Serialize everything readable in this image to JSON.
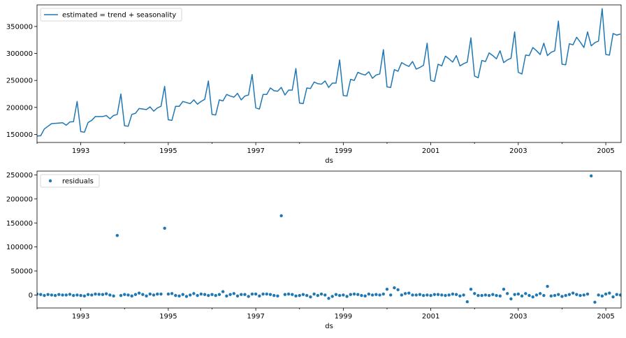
{
  "chart_data": [
    {
      "type": "line",
      "color": "#1f77b4",
      "legend": "estimated = trend + seasonality",
      "legend_position": "top-left",
      "xlabel": "ds",
      "xlim": [
        1992.0,
        2005.35
      ],
      "ylim": [
        135000,
        390000
      ],
      "yticks": [
        150000,
        200000,
        250000,
        300000,
        350000
      ],
      "ytick_labels": [
        "150000",
        "200000",
        "250000",
        "300000",
        "350000"
      ],
      "xticks": [
        1993,
        1995,
        1997,
        1999,
        2001,
        2003,
        2005
      ],
      "xtick_labels": [
        "1993",
        "1995",
        "1997",
        "1999",
        "2001",
        "2003",
        "2005"
      ],
      "grid": false,
      "x": [
        1992.0,
        1992.0833,
        1992.1667,
        1992.25,
        1992.3333,
        1992.4167,
        1992.5,
        1992.5833,
        1992.6667,
        1992.75,
        1992.8333,
        1992.9167,
        1993.0,
        1993.0833,
        1993.1667,
        1993.25,
        1993.3333,
        1993.4167,
        1993.5,
        1993.5833,
        1993.6667,
        1993.75,
        1993.8333,
        1993.9167,
        1994.0,
        1994.0833,
        1994.1667,
        1994.25,
        1994.3333,
        1994.4167,
        1994.5,
        1994.5833,
        1994.6667,
        1994.75,
        1994.8333,
        1994.9167,
        1995.0,
        1995.0833,
        1995.1667,
        1995.25,
        1995.3333,
        1995.4167,
        1995.5,
        1995.5833,
        1995.6667,
        1995.75,
        1995.8333,
        1995.9167,
        1996.0,
        1996.0833,
        1996.1667,
        1996.25,
        1996.3333,
        1996.4167,
        1996.5,
        1996.5833,
        1996.6667,
        1996.75,
        1996.8333,
        1996.9167,
        1997.0,
        1997.0833,
        1997.1667,
        1997.25,
        1997.3333,
        1997.4167,
        1997.5,
        1997.5833,
        1997.6667,
        1997.75,
        1997.8333,
        1997.9167,
        1998.0,
        1998.0833,
        1998.1667,
        1998.25,
        1998.3333,
        1998.4167,
        1998.5,
        1998.5833,
        1998.6667,
        1998.75,
        1998.8333,
        1998.9167,
        1999.0,
        1999.0833,
        1999.1667,
        1999.25,
        1999.3333,
        1999.4167,
        1999.5,
        1999.5833,
        1999.6667,
        1999.75,
        1999.8333,
        1999.9167,
        2000.0,
        2000.0833,
        2000.1667,
        2000.25,
        2000.3333,
        2000.4167,
        2000.5,
        2000.5833,
        2000.6667,
        2000.75,
        2000.8333,
        2000.9167,
        2001.0,
        2001.0833,
        2001.1667,
        2001.25,
        2001.3333,
        2001.4167,
        2001.5,
        2001.5833,
        2001.6667,
        2001.75,
        2001.8333,
        2001.9167,
        2002.0,
        2002.0833,
        2002.1667,
        2002.25,
        2002.3333,
        2002.4167,
        2002.5,
        2002.5833,
        2002.6667,
        2002.75,
        2002.8333,
        2002.9167,
        2003.0,
        2003.0833,
        2003.1667,
        2003.25,
        2003.3333,
        2003.4167,
        2003.5,
        2003.5833,
        2003.6667,
        2003.75,
        2003.8333,
        2003.9167,
        2004.0,
        2004.0833,
        2004.1667,
        2004.25,
        2004.3333,
        2004.4167,
        2004.5,
        2004.5833,
        2004.6667,
        2004.75,
        2004.8333,
        2004.9167,
        2005.0,
        2005.0833,
        2005.1667,
        2005.25,
        2005.3333
      ],
      "y": [
        147000,
        147500,
        160000,
        165000,
        170000,
        170500,
        171000,
        171500,
        167000,
        173000,
        173500,
        211000,
        155000,
        154000,
        172000,
        176000,
        183000,
        183000,
        183000,
        185000,
        179000,
        185000,
        187000,
        225000,
        166000,
        165000,
        187000,
        189000,
        198000,
        197000,
        196000,
        201000,
        193000,
        199000,
        202000,
        239000,
        177000,
        176000,
        202000,
        202000,
        211000,
        209000,
        207000,
        214000,
        206000,
        211000,
        215000,
        249000,
        187000,
        186000,
        214000,
        212000,
        224000,
        221000,
        219000,
        226000,
        214000,
        221000,
        223000,
        261000,
        199000,
        197000,
        224000,
        224000,
        236000,
        231000,
        230000,
        237000,
        223000,
        232000,
        232000,
        272000,
        208000,
        207000,
        236000,
        235000,
        247000,
        244000,
        243000,
        249000,
        237000,
        245000,
        245000,
        288000,
        222000,
        221000,
        252000,
        250000,
        265000,
        262000,
        260000,
        266000,
        254000,
        260000,
        262000,
        307000,
        238000,
        237000,
        270000,
        267000,
        283000,
        279000,
        276000,
        285000,
        271000,
        274000,
        278000,
        319000,
        250000,
        248000,
        280000,
        277000,
        295000,
        290000,
        284000,
        296000,
        277000,
        281000,
        284000,
        329000,
        258000,
        255000,
        287000,
        285000,
        301000,
        296000,
        290000,
        305000,
        283000,
        288000,
        291000,
        340000,
        265000,
        262000,
        297000,
        296000,
        311000,
        305000,
        298000,
        319000,
        296000,
        302000,
        305000,
        360000,
        280000,
        279000,
        318000,
        316000,
        330000,
        321000,
        311000,
        340000,
        314000,
        320000,
        323000,
        383000,
        298000,
        297000,
        337000,
        334000,
        336000
      ]
    },
    {
      "type": "scatter",
      "color": "#1f77b4",
      "legend": "residuals",
      "legend_position": "top-left",
      "xlabel": "ds",
      "xlim": [
        1992.0,
        2005.35
      ],
      "ylim": [
        -27000,
        258000
      ],
      "yticks": [
        0,
        50000,
        100000,
        150000,
        200000,
        250000
      ],
      "ytick_labels": [
        "0",
        "50000",
        "100000",
        "150000",
        "200000",
        "250000"
      ],
      "xticks": [
        1993,
        1995,
        1997,
        1999,
        2001,
        2003,
        2005
      ],
      "xtick_labels": [
        "1993",
        "1995",
        "1997",
        "1999",
        "2001",
        "2003",
        "2005"
      ],
      "grid": false,
      "x": [
        1992.0,
        1992.0833,
        1992.1667,
        1992.25,
        1992.3333,
        1992.4167,
        1992.5,
        1992.5833,
        1992.6667,
        1992.75,
        1992.8333,
        1992.9167,
        1993.0,
        1993.0833,
        1993.1667,
        1993.25,
        1993.3333,
        1993.4167,
        1993.5,
        1993.5833,
        1993.6667,
        1993.75,
        1993.8333,
        1993.9167,
        1994.0,
        1994.0833,
        1994.1667,
        1994.25,
        1994.3333,
        1994.4167,
        1994.5,
        1994.5833,
        1994.6667,
        1994.75,
        1994.8333,
        1994.9167,
        1995.0,
        1995.0833,
        1995.1667,
        1995.25,
        1995.3333,
        1995.4167,
        1995.5,
        1995.5833,
        1995.6667,
        1995.75,
        1995.8333,
        1995.9167,
        1996.0,
        1996.0833,
        1996.1667,
        1996.25,
        1996.3333,
        1996.4167,
        1996.5,
        1996.5833,
        1996.6667,
        1996.75,
        1996.8333,
        1996.9167,
        1997.0,
        1997.0833,
        1997.1667,
        1997.25,
        1997.3333,
        1997.4167,
        1997.5,
        1997.5833,
        1997.6667,
        1997.75,
        1997.8333,
        1997.9167,
        1998.0,
        1998.0833,
        1998.1667,
        1998.25,
        1998.3333,
        1998.4167,
        1998.5,
        1998.5833,
        1998.6667,
        1998.75,
        1998.8333,
        1998.9167,
        1999.0,
        1999.0833,
        1999.1667,
        1999.25,
        1999.3333,
        1999.4167,
        1999.5,
        1999.5833,
        1999.6667,
        1999.75,
        1999.8333,
        1999.9167,
        2000.0,
        2000.0833,
        2000.1667,
        2000.25,
        2000.3333,
        2000.4167,
        2000.5,
        2000.5833,
        2000.6667,
        2000.75,
        2000.8333,
        2000.9167,
        2001.0,
        2001.0833,
        2001.1667,
        2001.25,
        2001.3333,
        2001.4167,
        2001.5,
        2001.5833,
        2001.6667,
        2001.75,
        2001.8333,
        2001.9167,
        2002.0,
        2002.0833,
        2002.1667,
        2002.25,
        2002.3333,
        2002.4167,
        2002.5,
        2002.5833,
        2002.6667,
        2002.75,
        2002.8333,
        2002.9167,
        2003.0,
        2003.0833,
        2003.1667,
        2003.25,
        2003.3333,
        2003.4167,
        2003.5,
        2003.5833,
        2003.6667,
        2003.75,
        2003.8333,
        2003.9167,
        2004.0,
        2004.0833,
        2004.1667,
        2004.25,
        2004.3333,
        2004.4167,
        2004.5,
        2004.5833,
        2004.6667,
        2004.75,
        2004.8333,
        2004.9167,
        2005.0,
        2005.0833,
        2005.1667,
        2005.25,
        2005.3333
      ],
      "y": [
        2000,
        1000,
        -1000,
        1000,
        0,
        -1000,
        1000,
        0,
        0,
        1500,
        -1000,
        0,
        -1000,
        -2000,
        1000,
        0,
        2000,
        1500,
        1000,
        2500,
        0,
        -2000,
        124000,
        -1000,
        1000,
        0,
        -2000,
        1000,
        4000,
        1000,
        -2000,
        2000,
        0,
        2000,
        2000,
        139000,
        2000,
        3000,
        -1000,
        -2000,
        1000,
        -3000,
        0,
        3000,
        -1000,
        2000,
        1000,
        -1000,
        1000,
        -1000,
        1000,
        7000,
        -2000,
        1000,
        3000,
        -2000,
        1000,
        1000,
        -3000,
        2000,
        2000,
        -2000,
        2000,
        2000,
        1000,
        -1000,
        -2000,
        165000,
        1000,
        2000,
        1000,
        -2000,
        -1000,
        1000,
        -1000,
        -4000,
        2000,
        -1000,
        2000,
        0,
        -7000,
        -3000,
        1000,
        -1000,
        0,
        -3000,
        1000,
        2000,
        1000,
        -1000,
        -2000,
        2000,
        0,
        1000,
        0,
        2000,
        12000,
        0,
        15000,
        11000,
        0,
        3000,
        4000,
        0,
        0,
        1000,
        -1000,
        0,
        -1000,
        1000,
        1000,
        0,
        -1000,
        0,
        2000,
        1000,
        -2000,
        0,
        -14000,
        12000,
        3000,
        -1000,
        -1000,
        0,
        -1000,
        1000,
        -1000,
        -2000,
        12000,
        3000,
        -8000,
        1000,
        2000,
        -2000,
        3000,
        -1000,
        -4000,
        0,
        3000,
        -1000,
        18000,
        -2000,
        -1000,
        1000,
        -3000,
        -1000,
        1000,
        4000,
        1000,
        -1000,
        0,
        2000,
        248000,
        -15000,
        0,
        -2000,
        2000,
        4000,
        -4000,
        1000,
        0
      ]
    }
  ]
}
